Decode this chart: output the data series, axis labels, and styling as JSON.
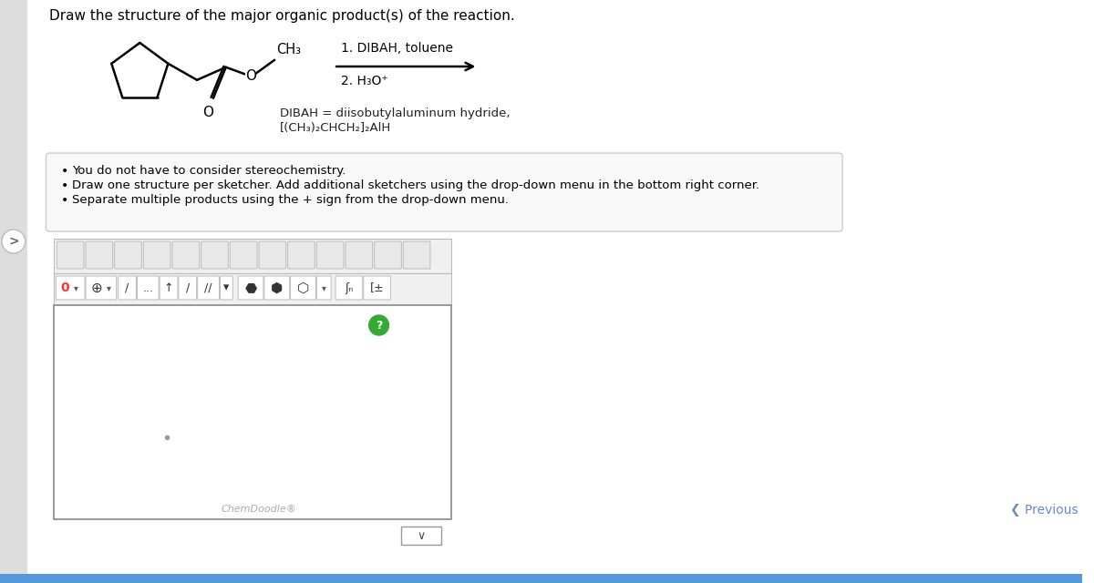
{
  "bg_color": "#ffffff",
  "title_text": "Draw the structure of the major organic product(s) of the reaction.",
  "reaction_conditions_1": "1. DIBAH, toluene",
  "reaction_conditions_2": "2. H₃O⁺",
  "dibah_line1": "DIBAH = diisobutylaluminum hydride,",
  "dibah_line2": "[(CH₃)₂CHCH₂]₂AlH",
  "bullet_points": [
    "You do not have to consider stereochemistry.",
    "Draw one structure per sketcher. Add additional sketchers using the drop-down menu in the bottom right corner.",
    "Separate multiple products using the + sign from the drop-down menu."
  ],
  "chemdoodle_text": "ChemDoodle®",
  "previous_text": "❮ Previous",
  "structure_color": "#000000",
  "toolbar_bg": "#f0f0f0",
  "sketcher_bg": "#ffffff",
  "bullet_box_bg": "#f8f8f8",
  "bullet_box_border": "#cccccc",
  "bottom_bar_color": "#5599dd",
  "icon_bg": "#e8e8e8",
  "icon_border": "#bbbbbb",
  "red_0_color": "#ff3333",
  "green_q_color": "#33aa33",
  "left_panel_color": "#dddddd",
  "nav_arrow_color": "#666666"
}
